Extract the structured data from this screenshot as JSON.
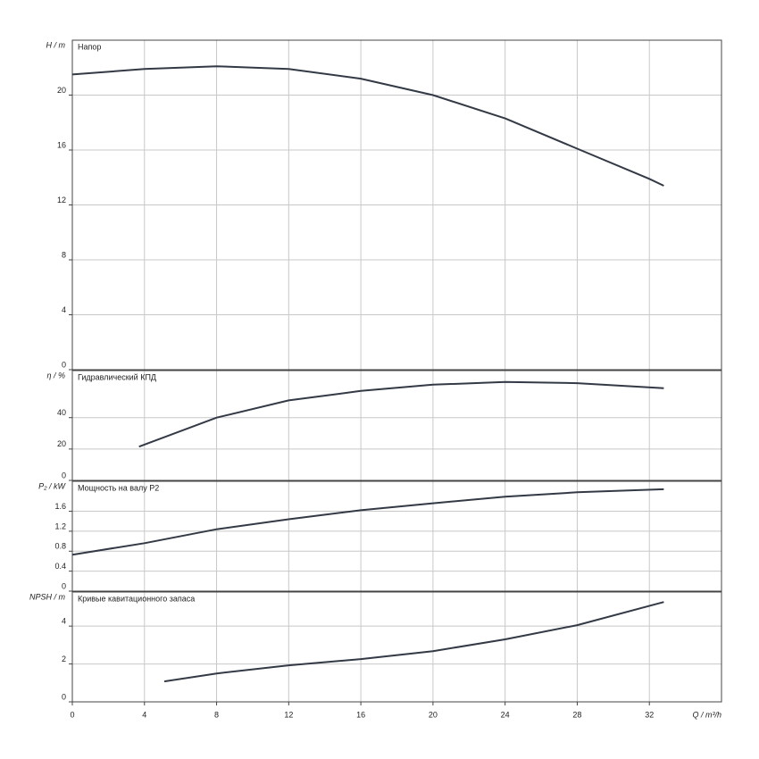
{
  "chart_data": [
    {
      "type": "line",
      "title": "Напор",
      "ylabel": "H / m",
      "ylim": [
        0,
        24
      ],
      "yticks": [
        0,
        4,
        8,
        12,
        16,
        20
      ],
      "x": [
        0,
        4,
        8,
        12,
        16,
        20,
        24,
        28,
        32,
        32.8
      ],
      "values": [
        21.5,
        21.9,
        22.1,
        21.9,
        21.2,
        20.0,
        18.3,
        16.1,
        13.9,
        13.4
      ],
      "color": "#333a45"
    },
    {
      "type": "line",
      "title": "Гидравлический КПД",
      "ylabel": "η / %",
      "ylim": [
        0,
        70
      ],
      "yticks": [
        0,
        20,
        40
      ],
      "x": [
        3.7,
        8,
        12,
        16,
        20,
        24,
        28,
        32.8
      ],
      "values": [
        21.5,
        40,
        51,
        57,
        61,
        62.7,
        62,
        58.8
      ],
      "color": "#333a45"
    },
    {
      "type": "line",
      "title": "Мощность на валу P2",
      "ylabel": "P₂ / kW",
      "ylim": [
        0,
        2.2
      ],
      "yticks": [
        0,
        0.4,
        0.8,
        1.2,
        1.6
      ],
      "x": [
        0,
        4,
        8,
        12,
        16,
        20,
        24,
        28,
        32.8
      ],
      "values": [
        0.73,
        0.96,
        1.24,
        1.44,
        1.62,
        1.76,
        1.89,
        1.98,
        2.04
      ],
      "color": "#333a45"
    },
    {
      "type": "line",
      "title": "Кривые кавитационного запаса",
      "ylabel": "NPSH / m",
      "ylim": [
        0,
        5.8
      ],
      "yticks": [
        0,
        2,
        4
      ],
      "x": [
        5.1,
        8,
        12,
        16,
        20,
        24,
        28,
        32.8
      ],
      "values": [
        1.08,
        1.5,
        1.93,
        2.26,
        2.68,
        3.3,
        4.05,
        5.27
      ],
      "color": "#333a45",
      "xlabel": "Q / m³/h",
      "xlim": [
        0,
        36
      ],
      "xticks": [
        0,
        4,
        8,
        12,
        16,
        20,
        24,
        28,
        32
      ]
    }
  ]
}
